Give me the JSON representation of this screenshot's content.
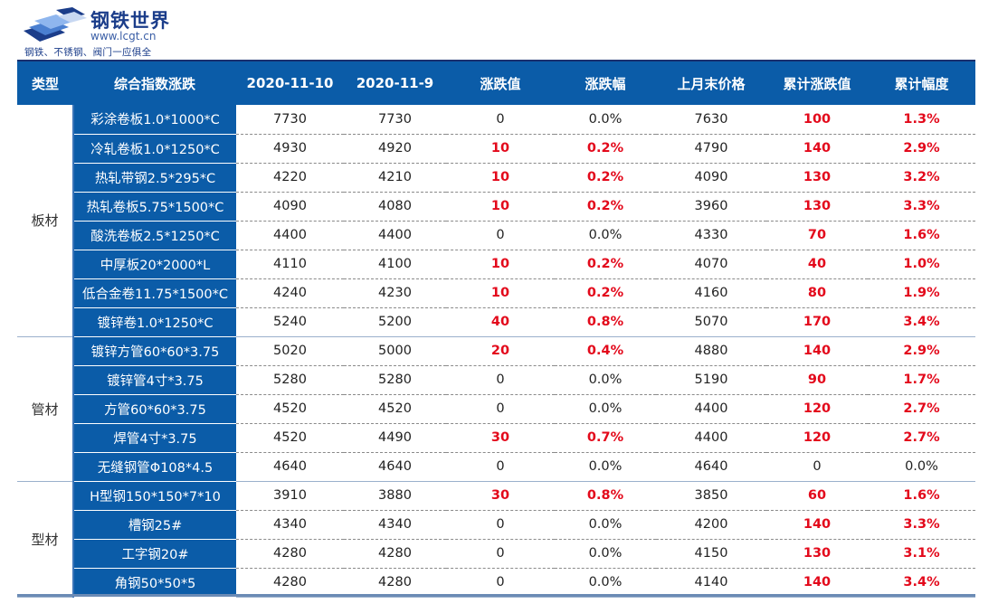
{
  "logo": {
    "brand": "钢铁世界",
    "url": "www.lcgt.cn",
    "slogan": "钢铁、不锈钢、阀门一应俱全",
    "icon": "steel-ingot-logo-icon"
  },
  "table": {
    "headers": [
      "类型",
      "综合指数涨跌",
      "2020-11-10",
      "2020-11-9",
      "涨跌值",
      "涨跌幅",
      "上月末价格",
      "累计涨跌值",
      "累计幅度"
    ],
    "groups": [
      {
        "category": "板材",
        "rows": [
          [
            "彩涂卷板1.0*1000*C",
            "7730",
            "7730",
            "0",
            "0.0%",
            "7630",
            "100",
            "1.3%"
          ],
          [
            "冷轧卷板1.0*1250*C",
            "4930",
            "4920",
            "10",
            "0.2%",
            "4790",
            "140",
            "2.9%"
          ],
          [
            "热轧带钢2.5*295*C",
            "4220",
            "4210",
            "10",
            "0.2%",
            "4090",
            "130",
            "3.2%"
          ],
          [
            "热轧卷板5.75*1500*C",
            "4090",
            "4080",
            "10",
            "0.2%",
            "3960",
            "130",
            "3.3%"
          ],
          [
            "酸洗卷板2.5*1250*C",
            "4400",
            "4400",
            "0",
            "0.0%",
            "4330",
            "70",
            "1.6%"
          ],
          [
            "中厚板20*2000*L",
            "4110",
            "4100",
            "10",
            "0.2%",
            "4070",
            "40",
            "1.0%"
          ],
          [
            "低合金卷11.75*1500*C",
            "4240",
            "4230",
            "10",
            "0.2%",
            "4160",
            "80",
            "1.9%"
          ],
          [
            "镀锌卷1.0*1250*C",
            "5240",
            "5200",
            "40",
            "0.8%",
            "5070",
            "170",
            "3.4%"
          ]
        ]
      },
      {
        "category": "管材",
        "rows": [
          [
            "镀锌方管60*60*3.75",
            "5020",
            "5000",
            "20",
            "0.4%",
            "4880",
            "140",
            "2.9%"
          ],
          [
            "镀锌管4寸*3.75",
            "5280",
            "5280",
            "0",
            "0.0%",
            "5190",
            "90",
            "1.7%"
          ],
          [
            "方管60*60*3.75",
            "4520",
            "4520",
            "0",
            "0.0%",
            "4400",
            "120",
            "2.7%"
          ],
          [
            "焊管4寸*3.75",
            "4520",
            "4490",
            "30",
            "0.7%",
            "4400",
            "120",
            "2.7%"
          ],
          [
            "无缝钢管Φ108*4.5",
            "4640",
            "4640",
            "0",
            "0.0%",
            "4640",
            "0",
            "0.0%"
          ]
        ]
      },
      {
        "category": "型材",
        "rows": [
          [
            "H型钢150*150*7*10",
            "3910",
            "3880",
            "30",
            "0.8%",
            "3850",
            "60",
            "1.6%"
          ],
          [
            "槽钢25#",
            "4340",
            "4340",
            "0",
            "0.0%",
            "4200",
            "140",
            "3.3%"
          ],
          [
            "工字钢20#",
            "4280",
            "4280",
            "0",
            "0.0%",
            "4150",
            "130",
            "3.1%"
          ],
          [
            "角钢50*50*5",
            "4280",
            "4280",
            "0",
            "0.0%",
            "4140",
            "140",
            "3.4%"
          ]
        ]
      }
    ]
  },
  "colors": {
    "header_bg": "#0b5ca8",
    "product_bg": "#0b5ca8",
    "positive_change": "#e3091b",
    "brand": "#1b3d8a"
  }
}
